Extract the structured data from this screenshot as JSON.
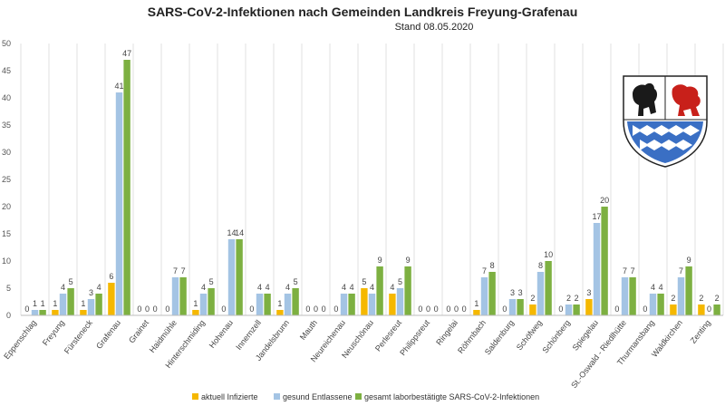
{
  "chart_data": {
    "type": "bar",
    "title": "SARS-CoV-2-Infektionen nach Gemeinden Landkreis Freyung-Grafenau",
    "subtitle": "Stand 08.05.2020",
    "xlabel": "",
    "ylabel": "",
    "ylim": [
      0,
      50
    ],
    "yticks": [
      0,
      5,
      10,
      15,
      20,
      25,
      30,
      35,
      40,
      45,
      50
    ],
    "grid": "vertical",
    "legend_position": "bottom",
    "categories": [
      "Eppenschlag",
      "Freyung",
      "Fürsteneck",
      "Grafenau",
      "Grainet",
      "Haidmühle",
      "Hinterschmiding",
      "Hohenau",
      "Innernzell",
      "Jandelsbrunn",
      "Mauth",
      "Neureichenau",
      "Neuschönau",
      "Perlesreut",
      "Philippsreut",
      "Ringelai",
      "Röhrnbach",
      "Saldenburg",
      "Schöfweg",
      "Schönberg",
      "Spiegelau",
      "St.-Oswald - Riedlhütte",
      "Thurmansbang",
      "Waldkirchen",
      "Zenting"
    ],
    "series": [
      {
        "name": "aktuell Infizierte",
        "color": "#f5b800",
        "values": [
          0,
          1,
          1,
          6,
          0,
          0,
          1,
          0,
          0,
          1,
          0,
          0,
          5,
          4,
          0,
          0,
          1,
          0,
          2,
          0,
          3,
          0,
          0,
          2,
          2
        ]
      },
      {
        "name": "gesund Entlassene",
        "color": "#a4c4e4",
        "values": [
          1,
          4,
          3,
          41,
          0,
          7,
          4,
          14,
          4,
          4,
          0,
          4,
          4,
          5,
          0,
          0,
          7,
          3,
          8,
          2,
          17,
          7,
          4,
          7,
          0
        ]
      },
      {
        "name": "gesamt laborbestätigte SARS-CoV-2-Infektionen",
        "color": "#7db041",
        "values": [
          1,
          5,
          4,
          47,
          0,
          7,
          5,
          14,
          4,
          5,
          0,
          4,
          9,
          9,
          0,
          0,
          8,
          3,
          10,
          2,
          20,
          7,
          4,
          9,
          2
        ]
      }
    ]
  }
}
